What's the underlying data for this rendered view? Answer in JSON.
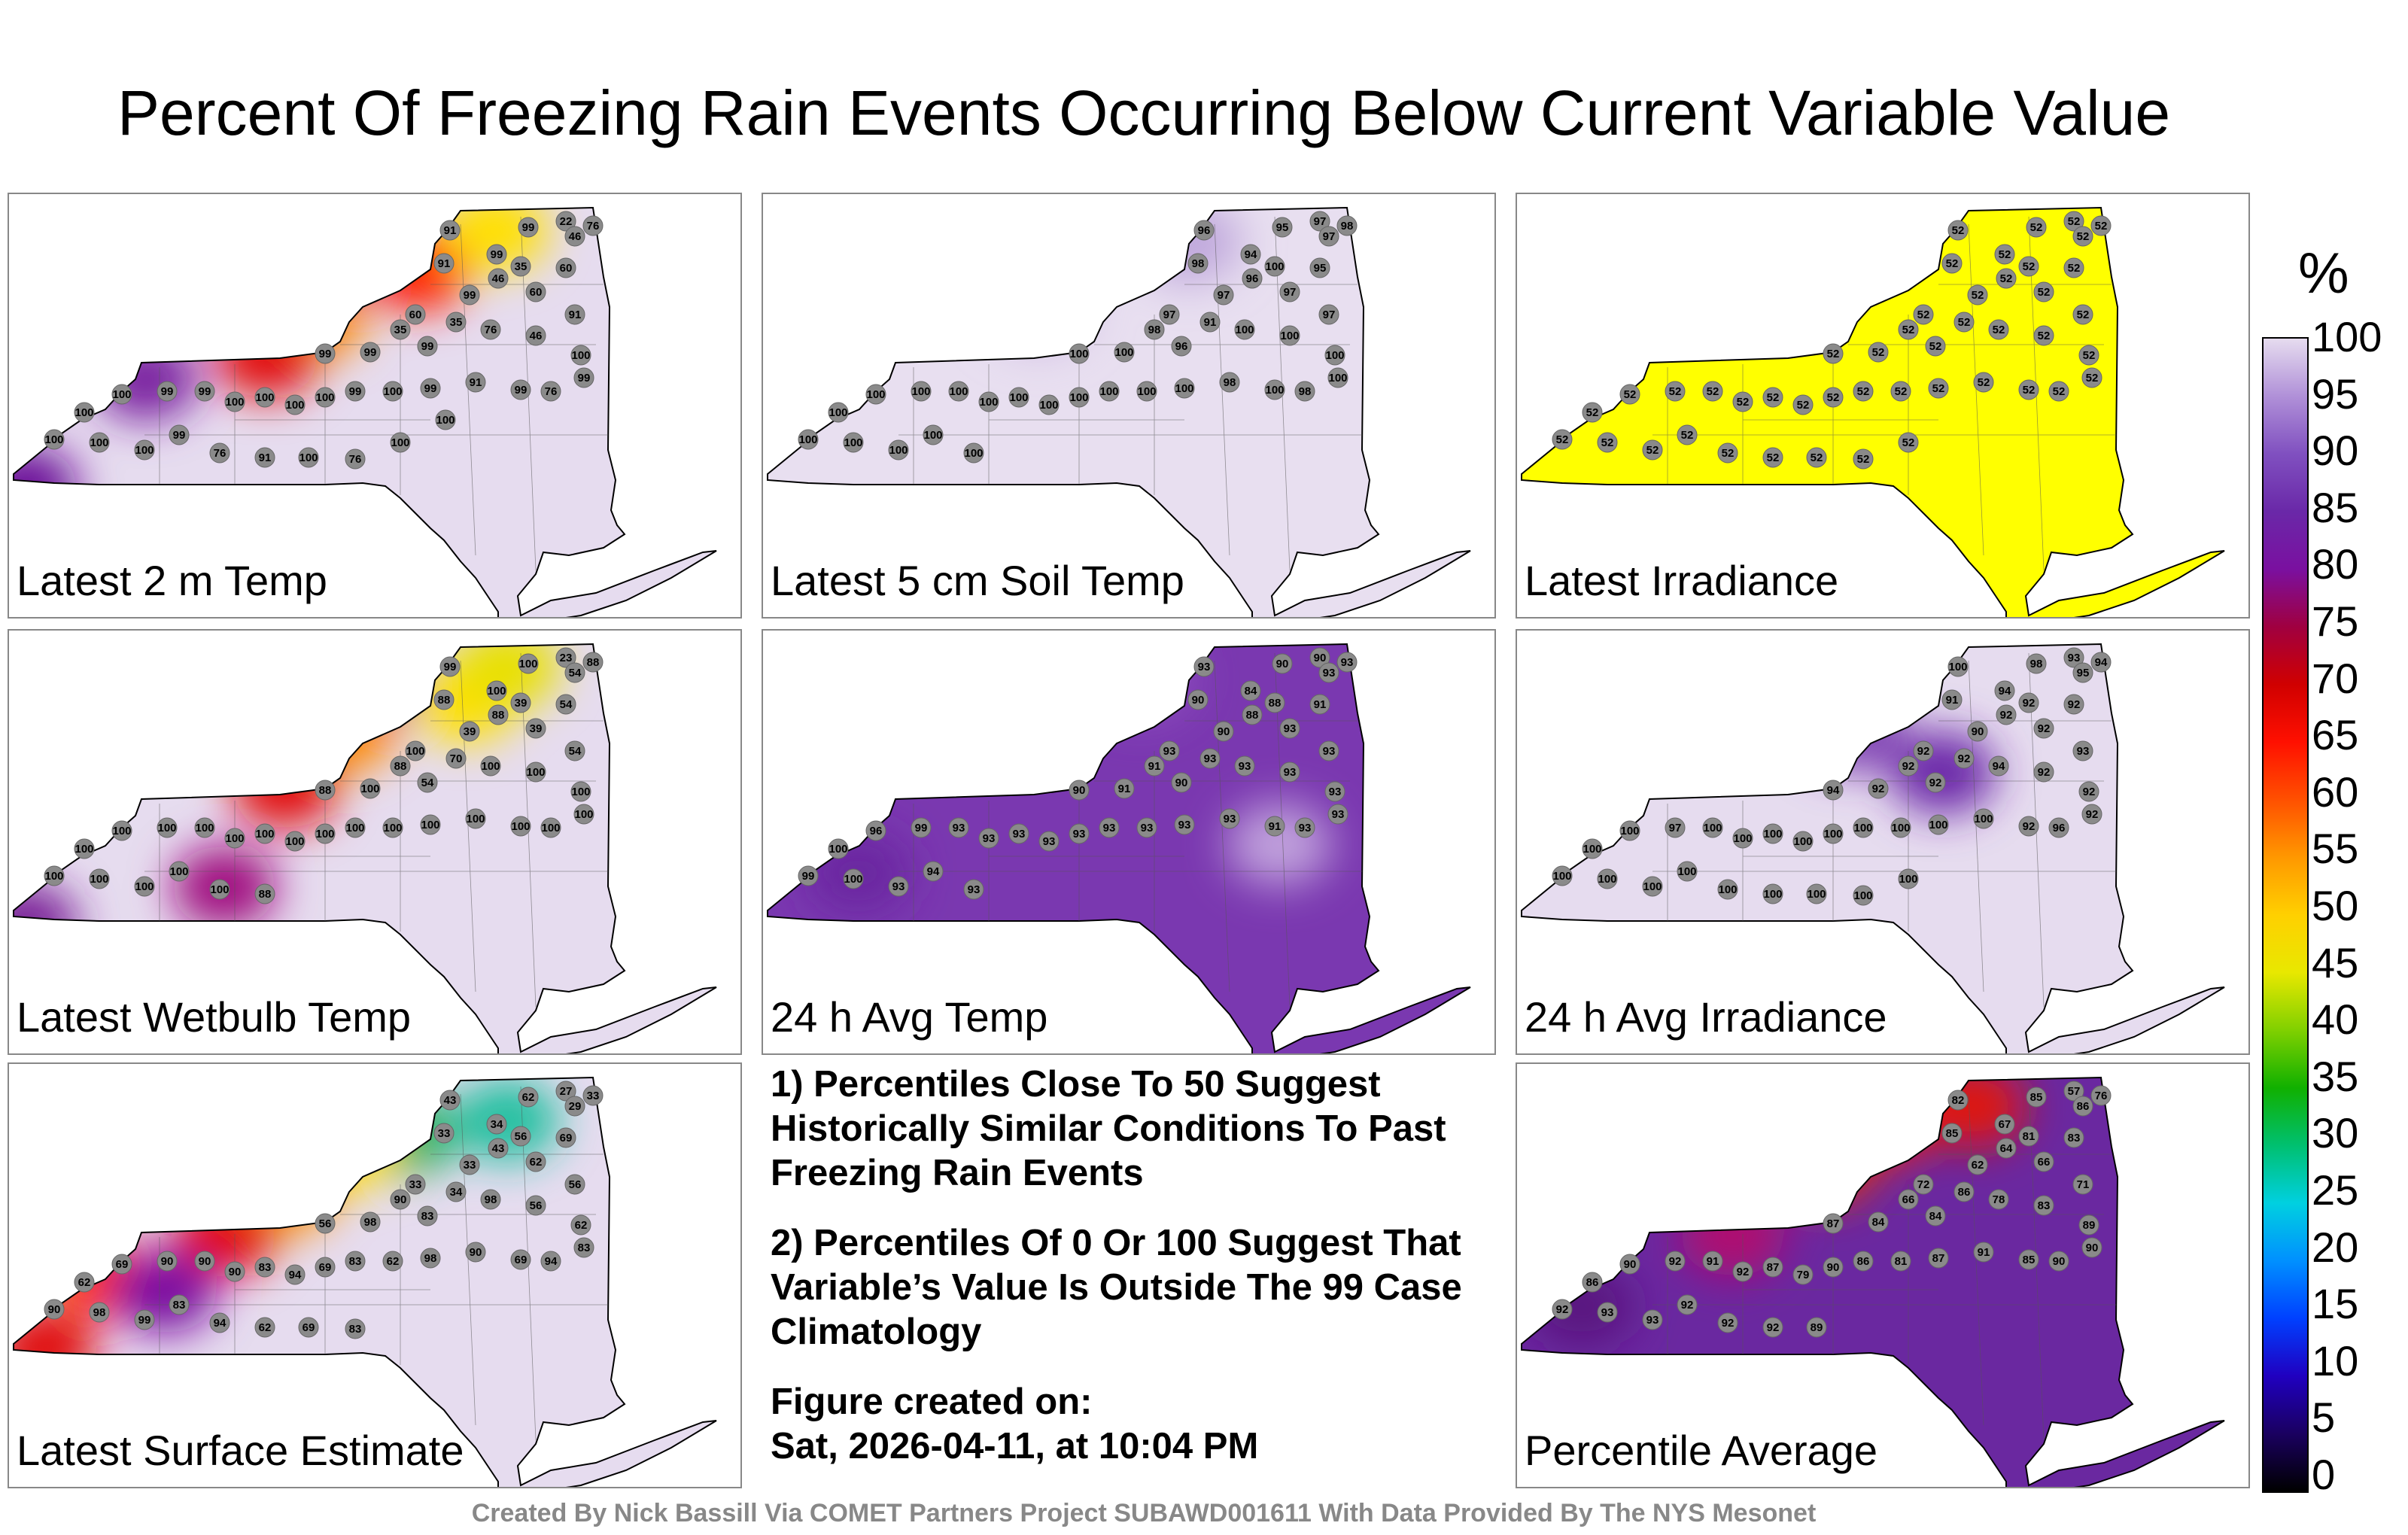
{
  "title": "Percent Of Freezing Rain Events Occurring Below Current Variable Value",
  "panels": [
    {
      "label": "Latest 2 m Temp",
      "base": "#e6dcef",
      "hot": [
        [
          0.58,
          0.15,
          "#8a10a0"
        ],
        [
          0.5,
          0.38,
          "#ff8800"
        ],
        [
          0.42,
          0.52,
          "#e21010"
        ],
        [
          0.67,
          0.22,
          "#ff2000"
        ],
        [
          0.8,
          0.08,
          "#ffe000"
        ],
        [
          0.22,
          0.6,
          "#7a20a0"
        ],
        [
          0.02,
          0.98,
          "#6a1098"
        ]
      ],
      "values": [
        91,
        99,
        22,
        76,
        46,
        99,
        35,
        60,
        91,
        99,
        46,
        60,
        91,
        35,
        60,
        35,
        99,
        76,
        46,
        99,
        99,
        100,
        99,
        76,
        99,
        91,
        99,
        100,
        99,
        100,
        100,
        100,
        100,
        99,
        99,
        100,
        100,
        100,
        100,
        100,
        99,
        76,
        91,
        100,
        76,
        100,
        100
      ]
    },
    {
      "label": "Latest 5 cm Soil Temp",
      "base": "#e8dff0",
      "hot": [
        [
          0.7,
          0.12,
          "#c0a8dc"
        ],
        [
          0.45,
          0.35,
          "#cdb8e2"
        ]
      ],
      "values": [
        96,
        95,
        97,
        98,
        97,
        94,
        100,
        95,
        98,
        97,
        96,
        97,
        97,
        91,
        97,
        98,
        96,
        100,
        100,
        100,
        100,
        100,
        100,
        98,
        100,
        98,
        100,
        100,
        100,
        100,
        100,
        100,
        100,
        100,
        100,
        100,
        100,
        100,
        100,
        100,
        100,
        100
      ]
    },
    {
      "label": "Latest Irradiance",
      "base": "#ffff00",
      "hot": [],
      "values": [
        52,
        52,
        52,
        52,
        52,
        52,
        52,
        52,
        52,
        52,
        52,
        52,
        52,
        52,
        52,
        52,
        52,
        52,
        52,
        52,
        52,
        52,
        52,
        52,
        52,
        52,
        52,
        52,
        52,
        52,
        52,
        52,
        52,
        52,
        52,
        52,
        52,
        52,
        52,
        52,
        52,
        52,
        52,
        52,
        52,
        52
      ]
    },
    {
      "label": "Latest Wetbulb Temp",
      "base": "#e6dcef",
      "hot": [
        [
          0.58,
          0.15,
          "#8a10a0"
        ],
        [
          0.55,
          0.3,
          "#ff8800"
        ],
        [
          0.45,
          0.5,
          "#e21010"
        ],
        [
          0.75,
          0.2,
          "#ffe000"
        ],
        [
          0.82,
          0.08,
          "#e8e000"
        ],
        [
          0.35,
          0.85,
          "#a01080"
        ],
        [
          0.02,
          0.98,
          "#7a2098"
        ]
      ],
      "values": [
        99,
        100,
        23,
        88,
        54,
        100,
        39,
        54,
        88,
        39,
        88,
        39,
        54,
        70,
        100,
        88,
        54,
        100,
        100,
        100,
        88,
        100,
        100,
        100,
        100,
        100,
        100,
        100,
        100,
        100,
        100,
        100,
        100,
        100,
        100,
        100,
        100,
        100,
        100,
        100,
        100,
        100,
        88
      ]
    },
    {
      "label": "24 h Avg Temp",
      "base": "#7a38b0",
      "hot": [
        [
          0.62,
          0.12,
          "#9050c0"
        ],
        [
          0.85,
          0.7,
          "#c0a0dc"
        ],
        [
          0.15,
          0.8,
          "#6a28a0"
        ]
      ],
      "values": [
        93,
        90,
        90,
        93,
        93,
        84,
        88,
        91,
        90,
        90,
        88,
        93,
        93,
        93,
        93,
        91,
        90,
        93,
        93,
        91,
        90,
        93,
        93,
        93,
        91,
        93,
        93,
        93,
        93,
        93,
        93,
        93,
        93,
        93,
        99,
        96,
        100,
        99,
        100,
        93,
        94,
        93
      ]
    },
    {
      "label": "24 h Avg Irradiance",
      "base": "#e6dcef",
      "hot": [
        [
          0.7,
          0.45,
          "#6a28a8"
        ],
        [
          0.55,
          0.3,
          "#7a38b0"
        ],
        [
          0.5,
          0.2,
          "#9060c0"
        ]
      ],
      "values": [
        100,
        98,
        93,
        94,
        95,
        94,
        92,
        92,
        91,
        90,
        92,
        92,
        93,
        92,
        92,
        92,
        92,
        94,
        92,
        92,
        94,
        92,
        92,
        96,
        92,
        100,
        100,
        100,
        100,
        100,
        100,
        100,
        100,
        100,
        97,
        100,
        100,
        100,
        100,
        100,
        100,
        100,
        100,
        100,
        100,
        100
      ]
    },
    {
      "label": "Latest Surface Estimate",
      "base": "#e6dcef",
      "hot": [
        [
          0.65,
          0.2,
          "#28b060"
        ],
        [
          0.55,
          0.25,
          "#ffe000"
        ],
        [
          0.45,
          0.4,
          "#ff9000"
        ],
        [
          0.35,
          0.55,
          "#e21010"
        ],
        [
          0.15,
          0.7,
          "#ff3000"
        ],
        [
          0.05,
          0.95,
          "#e01010"
        ],
        [
          0.82,
          0.15,
          "#20c0a0"
        ],
        [
          0.25,
          0.75,
          "#7a10a0"
        ]
      ],
      "values": [
        43,
        62,
        27,
        33,
        29,
        34,
        56,
        69,
        33,
        33,
        43,
        62,
        56,
        34,
        33,
        90,
        83,
        98,
        56,
        98,
        56,
        62,
        83,
        94,
        69,
        90,
        98,
        62,
        83,
        69,
        94,
        83,
        90,
        90,
        90,
        69,
        62,
        90,
        98,
        99,
        83,
        94,
        62,
        69,
        83
      ]
    },
    {
      "label": "Percentile Average",
      "base": "#6a28a0",
      "hot": [
        [
          0.6,
          0.15,
          "#ff2000"
        ],
        [
          0.5,
          0.3,
          "#e83000"
        ],
        [
          0.35,
          0.55,
          "#b01070"
        ],
        [
          0.75,
          0.1,
          "#e01810"
        ],
        [
          0.1,
          0.8,
          "#5a1880"
        ]
      ],
      "values": [
        82,
        85,
        57,
        76,
        86,
        67,
        81,
        83,
        85,
        62,
        64,
        66,
        71,
        86,
        72,
        66,
        84,
        78,
        83,
        84,
        87,
        89,
        90,
        90,
        85,
        91,
        87,
        81,
        86,
        90,
        79,
        87,
        92,
        91,
        92,
        90,
        86,
        92,
        93,
        93,
        92,
        92,
        92,
        89
      ]
    }
  ],
  "notes": [
    "1) Percentiles Close To 50 Suggest Historically Similar Conditions To Past Freezing Rain Events",
    "2) Percentiles Of 0 Or 100 Suggest That Variable’s Value Is Outside The 99 Case Climatology",
    "Figure created on:",
    "Sat, 2026-04-11, at 10:04 PM"
  ],
  "credit": "Created By Nick Bassill Via COMET Partners Project SUBAWD001611 With Data Provided By The NYS Mesonet",
  "colorbar": {
    "unit": "%",
    "ticks": [
      "100",
      "95",
      "90",
      "85",
      "80",
      "75",
      "70",
      "65",
      "60",
      "55",
      "50",
      "45",
      "40",
      "35",
      "30",
      "25",
      "20",
      "15",
      "10",
      "5",
      "0"
    ],
    "colors": [
      "#000000",
      "#1a0060",
      "#2000c0",
      "#0040ff",
      "#0090ff",
      "#00d0e0",
      "#00c070",
      "#10b000",
      "#80d000",
      "#e8e800",
      "#ffd000",
      "#ff9800",
      "#ff5000",
      "#ff1000",
      "#d00000",
      "#a00040",
      "#7a10a0",
      "#6a28a8",
      "#8050c0",
      "#b090d8",
      "#e6dcef"
    ]
  }
}
